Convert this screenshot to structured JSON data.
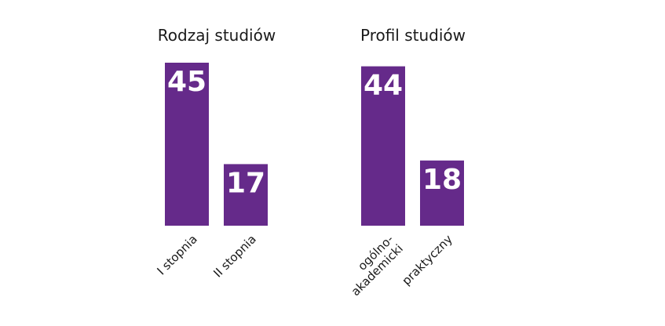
{
  "colors": {
    "bar": "#652a8a",
    "value_text": "#ffffff",
    "title_text": "#1a1a1a"
  },
  "chart_data": [
    {
      "type": "bar",
      "title": "Rodzaj studiów",
      "categories": [
        "I stopnia",
        "II stopnia"
      ],
      "values": [
        45,
        17
      ],
      "grid": false,
      "ylim": [
        0,
        45
      ]
    },
    {
      "type": "bar",
      "title": "Profil studiów",
      "categories": [
        "ogólno-\nakademicki",
        "praktyczny"
      ],
      "values": [
        44,
        18
      ],
      "grid": false,
      "ylim": [
        0,
        45
      ]
    }
  ]
}
